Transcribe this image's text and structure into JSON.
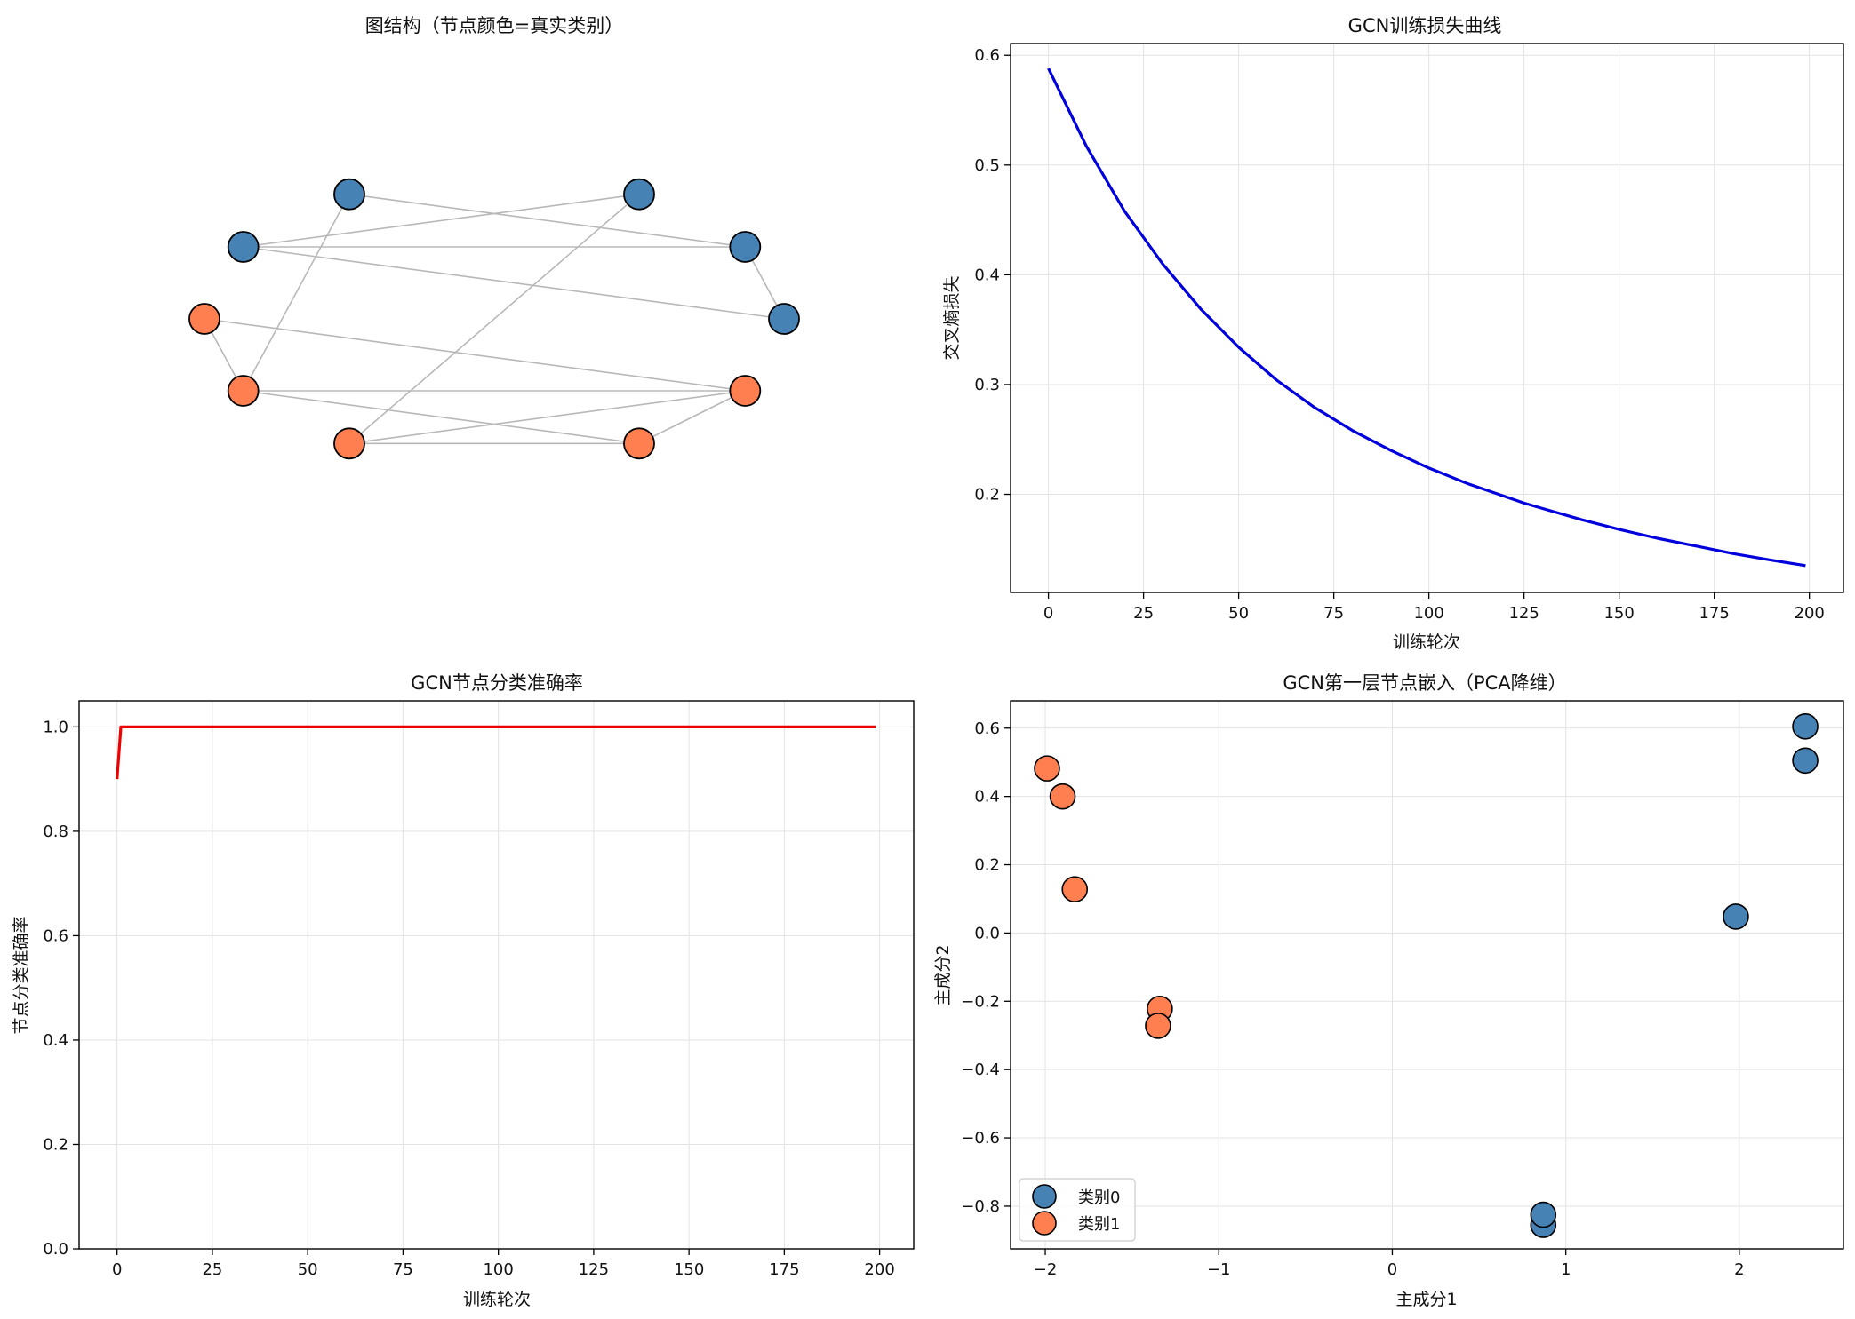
{
  "chart_data": [
    {
      "type": "graph",
      "title": "图结构（节点颜色=真实类别）",
      "nodes": [
        {
          "id": 0,
          "class": 0,
          "pos": [
            0.866,
            0.5
          ]
        },
        {
          "id": 1,
          "class": 0,
          "pos": [
            1.0,
            0.0
          ]
        },
        {
          "id": 2,
          "class": 1,
          "pos": [
            0.866,
            -0.5
          ]
        },
        {
          "id": 3,
          "class": 1,
          "pos": [
            0.5,
            -0.866
          ]
        },
        {
          "id": 4,
          "class": 1,
          "pos": [
            -0.5,
            -0.866
          ]
        },
        {
          "id": 5,
          "class": 1,
          "pos": [
            -0.866,
            -0.5
          ]
        },
        {
          "id": 6,
          "class": 1,
          "pos": [
            -1.0,
            0.0
          ]
        },
        {
          "id": 7,
          "class": 0,
          "pos": [
            -0.866,
            0.5
          ]
        },
        {
          "id": 8,
          "class": 0,
          "pos": [
            -0.5,
            0.866
          ]
        },
        {
          "id": 9,
          "class": 0,
          "pos": [
            0.5,
            0.866
          ]
        }
      ],
      "edges": [
        [
          0,
          1
        ],
        [
          0,
          7
        ],
        [
          0,
          8
        ],
        [
          9,
          7
        ],
        [
          9,
          4
        ],
        [
          7,
          1
        ],
        [
          8,
          5
        ],
        [
          6,
          5
        ],
        [
          6,
          2
        ],
        [
          5,
          2
        ],
        [
          5,
          3
        ],
        [
          4,
          3
        ],
        [
          4,
          2
        ],
        [
          3,
          2
        ]
      ],
      "colors": {
        "class0": "#4682B4",
        "class1": "#FF7F50",
        "edge": "#b8b8b8"
      }
    },
    {
      "type": "line",
      "title": "GCN训练损失曲线",
      "xlabel": "训练轮次",
      "ylabel": "交叉熵损失",
      "xlim": [
        -9.95,
        208.95
      ],
      "ylim": [
        0.1106,
        0.6107
      ],
      "xticks": [
        0,
        25,
        50,
        75,
        100,
        125,
        150,
        175,
        200
      ],
      "yticks": [
        0.2,
        0.3,
        0.4,
        0.5,
        0.6
      ],
      "color": "#0000dd",
      "series": [
        {
          "x": [
            0,
            10,
            20,
            30,
            40,
            50,
            60,
            70,
            80,
            90,
            100,
            110,
            120,
            125,
            130,
            140,
            150,
            160,
            170,
            180,
            190,
            199
          ],
          "values": [
            0.588,
            0.517,
            0.458,
            0.41,
            0.369,
            0.334,
            0.304,
            0.279,
            0.258,
            0.24,
            0.224,
            0.21,
            0.198,
            0.192,
            0.187,
            0.177,
            0.168,
            0.16,
            0.153,
            0.146,
            0.14,
            0.135
          ]
        }
      ]
    },
    {
      "type": "line",
      "title": "GCN节点分类准确率",
      "xlabel": "训练轮次",
      "ylabel": "节点分类准确率",
      "xlim": [
        -9.95,
        208.95
      ],
      "ylim": [
        0.0,
        1.05
      ],
      "xticks": [
        0,
        25,
        50,
        75,
        100,
        125,
        150,
        175,
        200
      ],
      "yticks": [
        0.0,
        0.2,
        0.4,
        0.6,
        0.8,
        1.0
      ],
      "color": "#ee0000",
      "series": [
        {
          "x": [
            0,
            1,
            199
          ],
          "values": [
            0.9,
            1.0,
            1.0
          ]
        }
      ]
    },
    {
      "type": "scatter",
      "title": "GCN第一层节点嵌入（PCA降维）",
      "xlabel": "主成分1",
      "ylabel": "主成分2",
      "xlim": [
        -2.2,
        2.6
      ],
      "ylim": [
        -0.925,
        0.68
      ],
      "xticks": [
        -2,
        -1,
        0,
        1,
        2
      ],
      "yticks": [
        -0.8,
        -0.6,
        -0.4,
        -0.2,
        0.0,
        0.2,
        0.4,
        0.6
      ],
      "legend_position": "lower-left",
      "series": [
        {
          "name": "类别0",
          "color": "#4682B4",
          "points": [
            [
              2.38,
              0.605
            ],
            [
              2.38,
              0.505
            ],
            [
              1.98,
              0.048
            ],
            [
              0.87,
              -0.855
            ],
            [
              0.87,
              -0.825
            ]
          ]
        },
        {
          "name": "类别1",
          "color": "#FF7F50",
          "points": [
            [
              -1.99,
              0.482
            ],
            [
              -1.9,
              0.4
            ],
            [
              -1.83,
              0.128
            ],
            [
              -1.34,
              -0.222
            ],
            [
              -1.35,
              -0.272
            ]
          ]
        }
      ]
    }
  ]
}
